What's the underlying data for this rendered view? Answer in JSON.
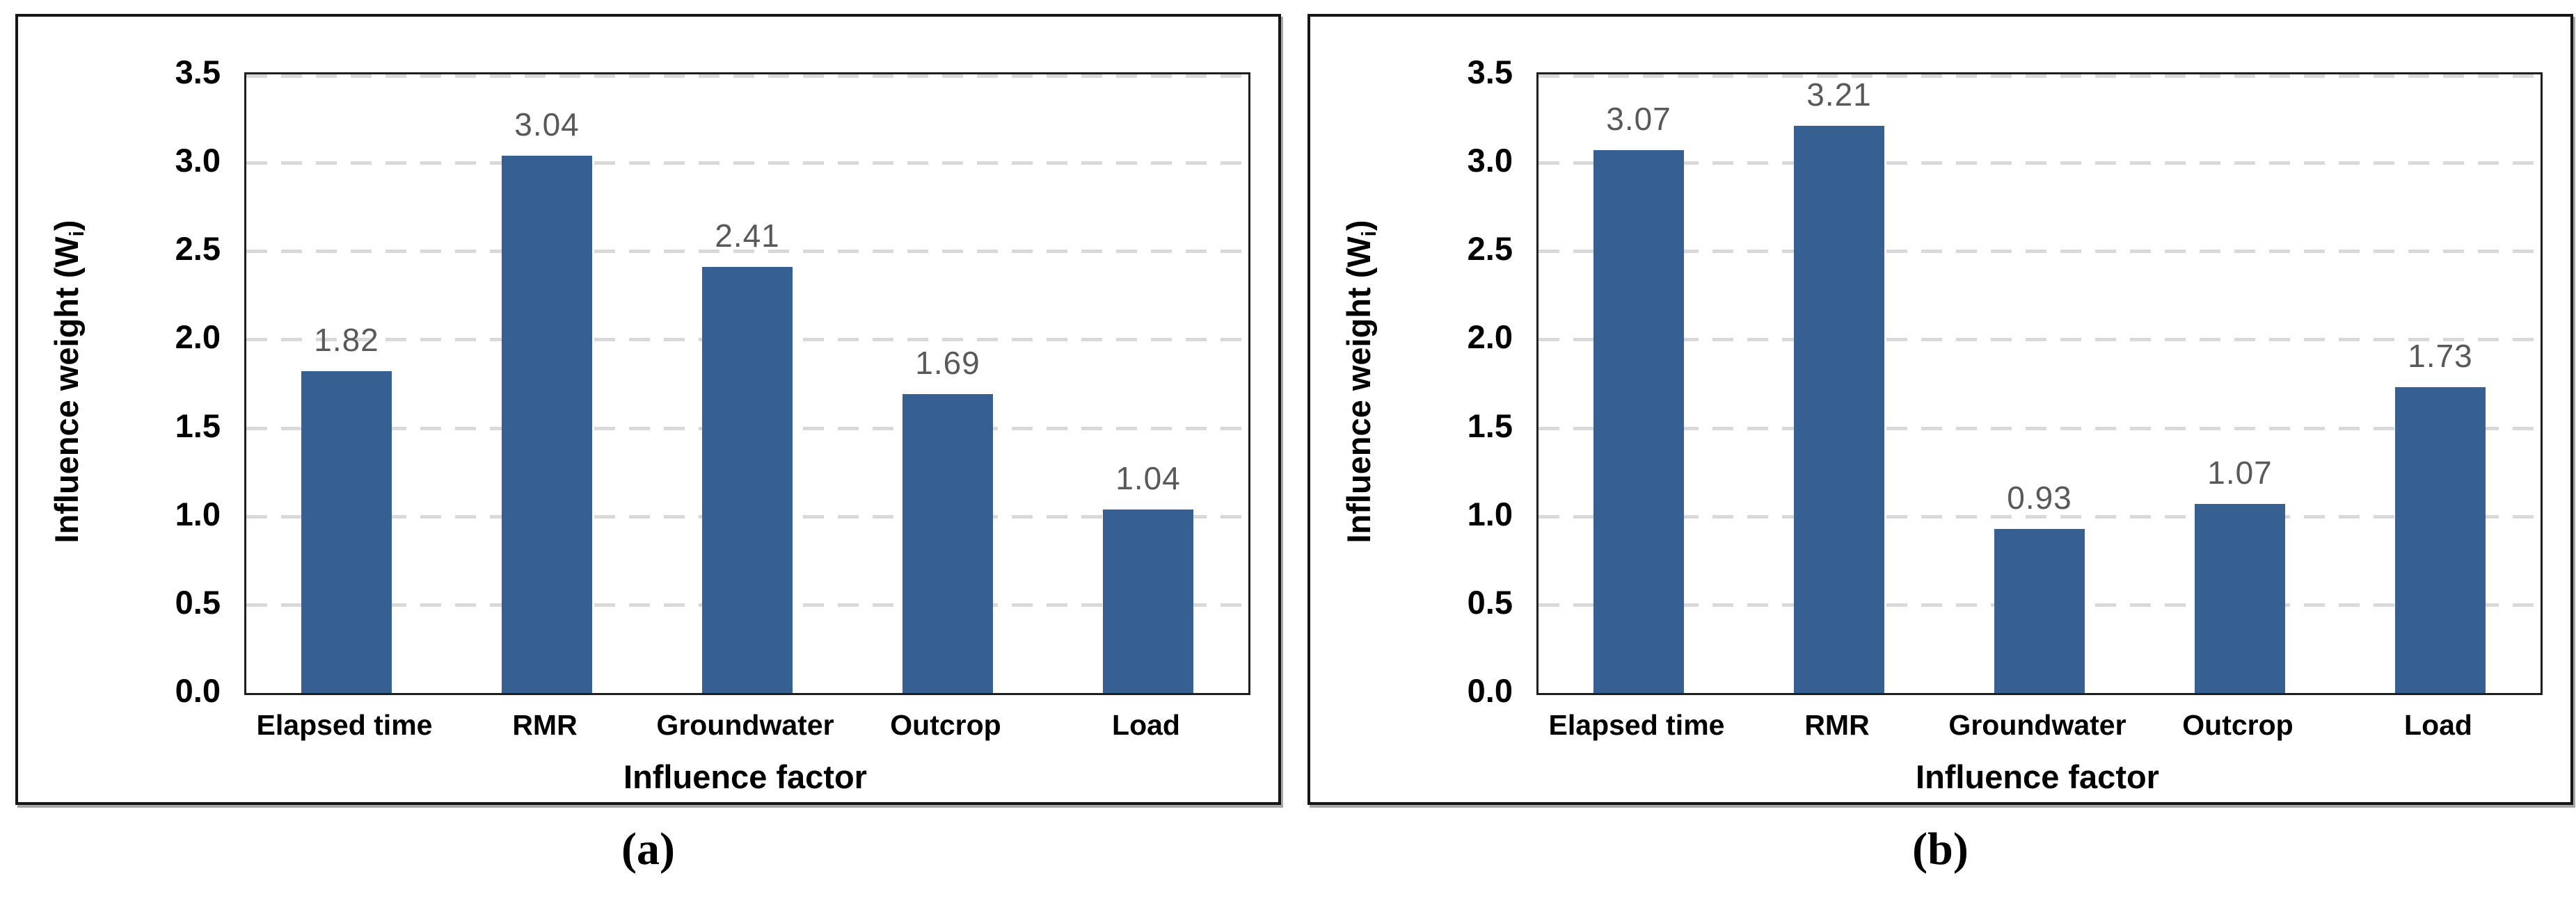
{
  "page": {
    "background": "#ffffff",
    "border_color": "#161616",
    "plot_border_color": "#1f1f1f",
    "gridline_color": "#d9d9d9",
    "tick_color": "#000000"
  },
  "chart_data": [
    {
      "type": "bar",
      "panel": "a",
      "caption": "(a)",
      "categories": [
        "Elapsed time",
        "RMR",
        "Groundwater",
        "Outcrop",
        "Load"
      ],
      "values": [
        1.82,
        3.04,
        2.41,
        1.69,
        1.04
      ],
      "value_labels": [
        "1.82",
        "3.04",
        "2.41",
        "1.69",
        "1.04"
      ],
      "xlabel": "Influence factor",
      "ylabel_main": "Influence weight (W",
      "ylabel_sub": "i",
      "ylabel_end": ")",
      "ylim": [
        0,
        3.5
      ],
      "yticks": [
        "0.0",
        "0.5",
        "1.0",
        "1.5",
        "2.0",
        "2.5",
        "3.0",
        "3.5"
      ],
      "grid": "horizontal-dashed",
      "legend": "none",
      "bar_color": "#366092",
      "value_label_color": "#595959"
    },
    {
      "type": "bar",
      "panel": "b",
      "caption": "(b)",
      "categories": [
        "Elapsed time",
        "RMR",
        "Groundwater",
        "Outcrop",
        "Load"
      ],
      "values": [
        3.07,
        3.21,
        0.93,
        1.07,
        1.73
      ],
      "value_labels": [
        "3.07",
        "3.21",
        "0.93",
        "1.07",
        "1.73"
      ],
      "xlabel": "Influence factor",
      "ylabel_main": "Influence weight (W",
      "ylabel_sub": "i",
      "ylabel_end": ")",
      "ylim": [
        0,
        3.5
      ],
      "yticks": [
        "0.0",
        "0.5",
        "1.0",
        "1.5",
        "2.0",
        "2.5",
        "3.0",
        "3.5"
      ],
      "grid": "horizontal-dashed",
      "legend": "none",
      "bar_color": "#366092",
      "value_label_color": "#595959"
    }
  ]
}
